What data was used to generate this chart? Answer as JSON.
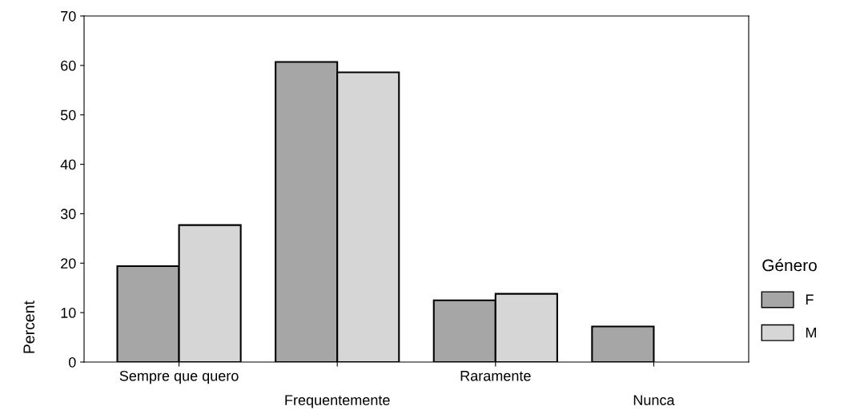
{
  "chart_data": {
    "type": "bar",
    "ylabel": "Percent",
    "legend_title": "Género",
    "categories": [
      "Sempre que quero",
      "Frequentemente",
      "Raramente",
      "Nunca"
    ],
    "series": [
      {
        "name": "F",
        "color": "#a6a6a6",
        "values": [
          19.4,
          60.7,
          12.5,
          7.2
        ]
      },
      {
        "name": "M",
        "color": "#d6d6d6",
        "values": [
          27.7,
          58.6,
          13.8,
          null
        ]
      }
    ],
    "ylim": [
      0,
      70
    ],
    "yticks": [
      0,
      10,
      20,
      30,
      40,
      50,
      60,
      70
    ],
    "grid": false,
    "legend": "right"
  }
}
